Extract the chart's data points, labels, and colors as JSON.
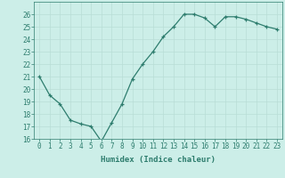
{
  "x": [
    0,
    1,
    2,
    3,
    4,
    5,
    6,
    7,
    8,
    9,
    10,
    11,
    12,
    13,
    14,
    15,
    16,
    17,
    18,
    19,
    20,
    21,
    22,
    23
  ],
  "y": [
    21.0,
    19.5,
    18.8,
    17.5,
    17.2,
    17.0,
    15.8,
    17.3,
    18.8,
    20.8,
    22.0,
    23.0,
    24.2,
    25.0,
    26.0,
    26.0,
    25.7,
    25.0,
    25.8,
    25.8,
    25.6,
    25.3,
    25.0,
    24.8
  ],
  "xlabel": "Humidex (Indice chaleur)",
  "ylim": [
    16,
    27
  ],
  "yticks": [
    16,
    17,
    18,
    19,
    20,
    21,
    22,
    23,
    24,
    25,
    26
  ],
  "xtick_labels": [
    "0",
    "1",
    "2",
    "3",
    "4",
    "5",
    "6",
    "7",
    "8",
    "9",
    "10",
    "11",
    "12",
    "13",
    "14",
    "15",
    "16",
    "17",
    "18",
    "19",
    "20",
    "21",
    "22",
    "23"
  ],
  "line_color": "#2e7d6e",
  "bg_color": "#cceee8",
  "grid_color": "#b8ddd6",
  "marker": "+",
  "xlabel_fontsize": 6.5,
  "tick_fontsize": 5.5
}
